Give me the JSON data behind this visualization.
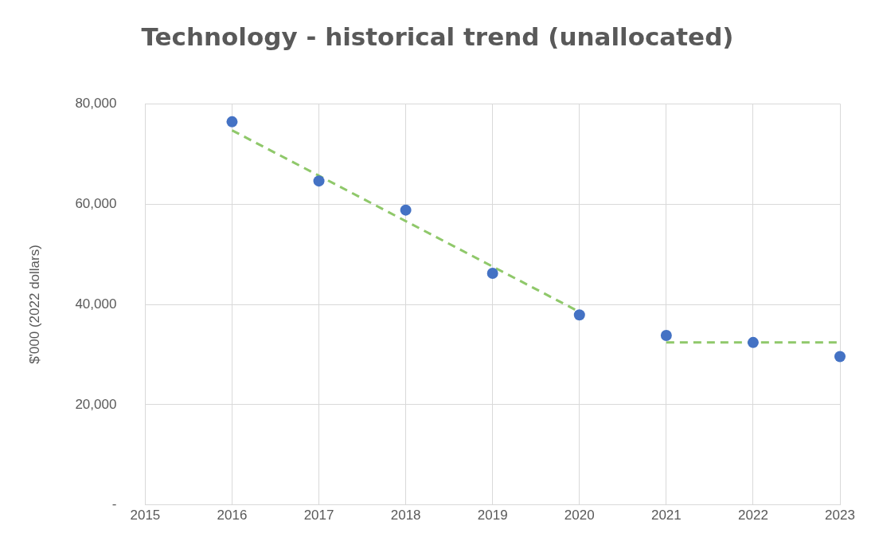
{
  "chart_data": {
    "type": "scatter",
    "title": "Technology - historical trend (unallocated)",
    "ylabel": "$'000 (2022 dollars)",
    "x": [
      2016,
      2017,
      2018,
      2019,
      2020,
      2021,
      2022,
      2023
    ],
    "series": [
      {
        "color": "#4472c4",
        "values": [
          76400,
          64600,
          58800,
          46200,
          37900,
          33800,
          32400,
          29600
        ]
      },
      {
        "type": "line",
        "color": "#8fc86a",
        "line_style": "dashed",
        "marker": "none",
        "x": [
          2016,
          2020
        ],
        "values": [
          74700,
          38500
        ]
      },
      {
        "type": "line",
        "color": "#8fc86a",
        "line_style": "dashed",
        "marker": "none",
        "x": [
          2021,
          2023
        ],
        "values": [
          32400,
          32400
        ]
      }
    ],
    "xlim": [
      2015,
      2023
    ],
    "xticks": [
      2015,
      2016,
      2017,
      2018,
      2019,
      2020,
      2021,
      2022,
      2023
    ],
    "ylim": [
      0,
      80000
    ],
    "yticks": [
      {
        "value": 0,
        "label": "-"
      },
      {
        "value": 20000,
        "label": "20,000"
      },
      {
        "value": 40000,
        "label": "40,000"
      },
      {
        "value": 60000,
        "label": "60,000"
      },
      {
        "value": 80000,
        "label": "80,000"
      }
    ],
    "grid": true,
    "legend": false,
    "marker": "circle"
  }
}
